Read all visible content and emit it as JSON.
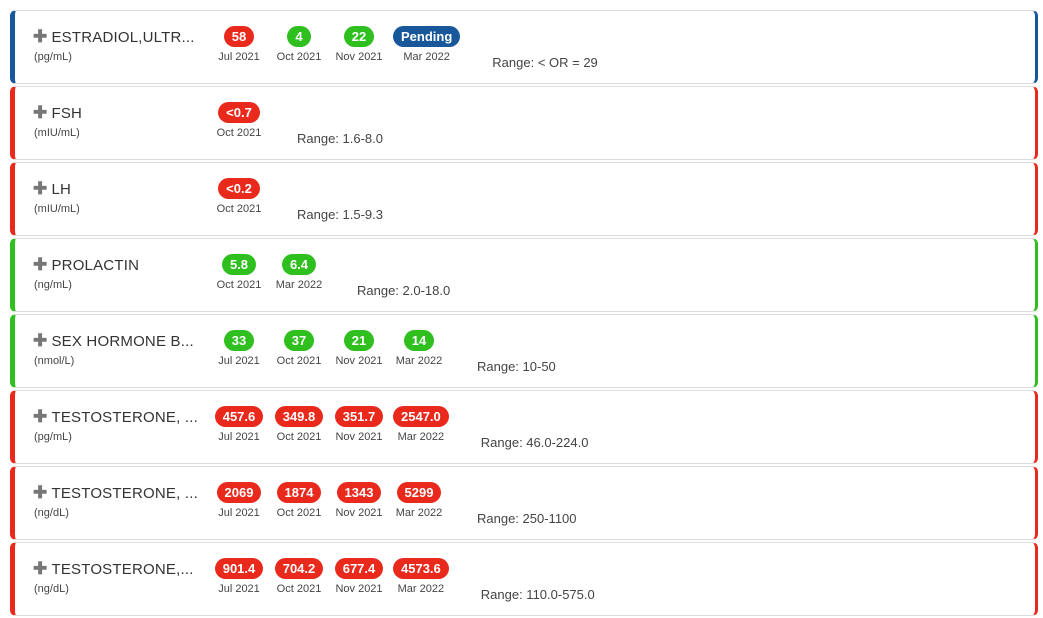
{
  "colors": {
    "high": "#e8291c",
    "normal": "#2fbf1f",
    "pending": "#18579a"
  },
  "tests": [
    {
      "name": "ESTRADIOL,ULTR...",
      "unit": "(pg/mL)",
      "status": "pending",
      "range": "Range: < OR = 29",
      "results": [
        {
          "value": "58",
          "date": "Jul 2021",
          "status": "high"
        },
        {
          "value": "4",
          "date": "Oct 2021",
          "status": "normal"
        },
        {
          "value": "22",
          "date": "Nov 2021",
          "status": "normal"
        },
        {
          "value": "Pending",
          "date": "Mar 2022",
          "status": "pending"
        }
      ]
    },
    {
      "name": "FSH",
      "unit": "(mIU/mL)",
      "status": "high",
      "range": "Range: 1.6-8.0",
      "results": [
        {
          "value": "<0.7",
          "date": "Oct 2021",
          "status": "high"
        }
      ]
    },
    {
      "name": "LH",
      "unit": "(mIU/mL)",
      "status": "high",
      "range": "Range: 1.5-9.3",
      "results": [
        {
          "value": "<0.2",
          "date": "Oct 2021",
          "status": "high"
        }
      ]
    },
    {
      "name": "PROLACTIN",
      "unit": "(ng/mL)",
      "status": "normal",
      "range": "Range: 2.0-18.0",
      "results": [
        {
          "value": "5.8",
          "date": "Oct 2021",
          "status": "normal"
        },
        {
          "value": "6.4",
          "date": "Mar 2022",
          "status": "normal"
        }
      ]
    },
    {
      "name": "SEX HORMONE B...",
      "unit": "(nmol/L)",
      "status": "normal",
      "range": "Range: 10-50",
      "results": [
        {
          "value": "33",
          "date": "Jul 2021",
          "status": "normal"
        },
        {
          "value": "37",
          "date": "Oct 2021",
          "status": "normal"
        },
        {
          "value": "21",
          "date": "Nov 2021",
          "status": "normal"
        },
        {
          "value": "14",
          "date": "Mar 2022",
          "status": "normal"
        }
      ]
    },
    {
      "name": "TESTOSTERONE, ...",
      "unit": "(pg/mL)",
      "status": "high",
      "range": "Range: 46.0-224.0",
      "results": [
        {
          "value": "457.6",
          "date": "Jul 2021",
          "status": "high"
        },
        {
          "value": "349.8",
          "date": "Oct 2021",
          "status": "high"
        },
        {
          "value": "351.7",
          "date": "Nov 2021",
          "status": "high"
        },
        {
          "value": "2547.0",
          "date": "Mar 2022",
          "status": "high"
        }
      ]
    },
    {
      "name": "TESTOSTERONE, ...",
      "unit": "(ng/dL)",
      "status": "high",
      "range": "Range: 250-1100",
      "results": [
        {
          "value": "2069",
          "date": "Jul 2021",
          "status": "high"
        },
        {
          "value": "1874",
          "date": "Oct 2021",
          "status": "high"
        },
        {
          "value": "1343",
          "date": "Nov 2021",
          "status": "high"
        },
        {
          "value": "5299",
          "date": "Mar 2022",
          "status": "high"
        }
      ]
    },
    {
      "name": "TESTOSTERONE,...",
      "unit": "(ng/dL)",
      "status": "high",
      "range": "Range: 110.0-575.0",
      "results": [
        {
          "value": "901.4",
          "date": "Jul 2021",
          "status": "high"
        },
        {
          "value": "704.2",
          "date": "Oct 2021",
          "status": "high"
        },
        {
          "value": "677.4",
          "date": "Nov 2021",
          "status": "high"
        },
        {
          "value": "4573.6",
          "date": "Mar 2022",
          "status": "high"
        }
      ]
    }
  ]
}
